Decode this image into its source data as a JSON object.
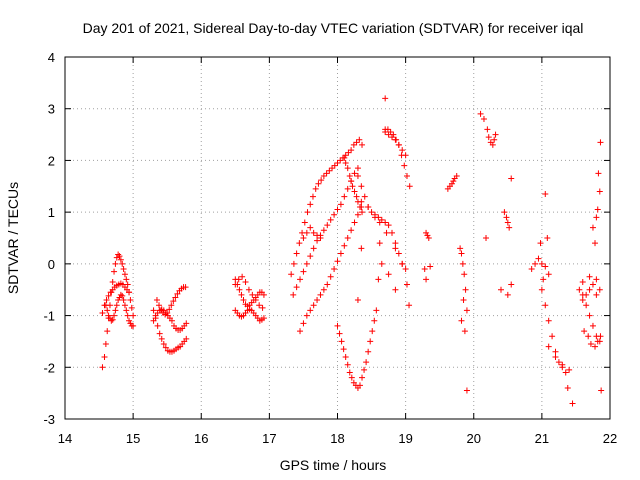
{
  "chart_data": {
    "type": "scatter",
    "title": "Day 201 of 2021, Sidereal Day-to-day VTEC variation (SDTVAR) for receiver iqal",
    "xlabel": "GPS time / hours",
    "ylabel": "SDTVAR / TECUs",
    "xlim": [
      14,
      22
    ],
    "ylim": [
      -3,
      4
    ],
    "xticks": [
      14,
      15,
      16,
      17,
      18,
      19,
      20,
      21,
      22
    ],
    "yticks": [
      -3,
      -2,
      -1,
      0,
      1,
      2,
      3,
      4
    ],
    "xtick_labels": [
      "14",
      "15",
      "16",
      "17",
      "18",
      "19",
      "20",
      "21",
      "22"
    ],
    "ytick_labels": [
      "-3",
      "-2",
      "-1",
      "0",
      "1",
      "2",
      "3",
      "4"
    ],
    "grid": true,
    "marker": "plus",
    "color": "#ff0000",
    "series": [
      {
        "name": "SDTVAR",
        "x": [
          14.55,
          14.58,
          14.6,
          14.62,
          14.64,
          14.66,
          14.68,
          14.7,
          14.72,
          14.74,
          14.76,
          14.78,
          14.8,
          14.82,
          14.84,
          14.86,
          14.88,
          14.9,
          14.92,
          14.94,
          14.96,
          14.98,
          15.0,
          14.55,
          14.58,
          14.61,
          14.64,
          14.67,
          14.7,
          14.73,
          14.76,
          14.79,
          14.82,
          14.85,
          14.88,
          14.91,
          14.94,
          14.6,
          14.62,
          14.64,
          14.66,
          14.68,
          14.7,
          14.72,
          14.74,
          14.76,
          14.78,
          14.8,
          14.82,
          14.84,
          14.86,
          14.88,
          14.9,
          14.92,
          14.94,
          14.96,
          14.98,
          15.0,
          15.3,
          15.33,
          15.36,
          15.39,
          15.42,
          15.45,
          15.48,
          15.51,
          15.54,
          15.57,
          15.6,
          15.63,
          15.66,
          15.69,
          15.72,
          15.75,
          15.78,
          15.3,
          15.33,
          15.36,
          15.39,
          15.42,
          15.45,
          15.48,
          15.51,
          15.54,
          15.57,
          15.6,
          15.63,
          15.66,
          15.69,
          15.72,
          15.75,
          15.78,
          15.35,
          15.38,
          15.41,
          15.44,
          15.47,
          15.5,
          15.53,
          15.56,
          15.59,
          15.62,
          15.65,
          15.68,
          15.71,
          15.74,
          15.77,
          16.5,
          16.53,
          16.56,
          16.59,
          16.62,
          16.65,
          16.68,
          16.71,
          16.74,
          16.77,
          16.8,
          16.83,
          16.86,
          16.89,
          16.92,
          16.5,
          16.53,
          16.56,
          16.59,
          16.62,
          16.65,
          16.68,
          16.71,
          16.74,
          16.77,
          16.8,
          16.83,
          16.86,
          16.89,
          16.92,
          16.5,
          16.55,
          16.6,
          16.65,
          16.7,
          16.75,
          16.8,
          16.85,
          16.9,
          17.32,
          17.36,
          17.4,
          17.44,
          17.48,
          17.52,
          17.56,
          17.6,
          17.64,
          17.68,
          17.72,
          17.76,
          17.8,
          17.84,
          17.88,
          17.92,
          17.96,
          18.0,
          18.04,
          18.08,
          18.12,
          18.16,
          18.2,
          18.24,
          18.28,
          18.32,
          18.36,
          17.35,
          17.4,
          17.45,
          17.5,
          17.55,
          17.6,
          17.65,
          17.7,
          17.75,
          17.8,
          17.85,
          17.9,
          17.95,
          18.0,
          18.05,
          18.1,
          18.15,
          18.2,
          18.25,
          18.3,
          17.45,
          17.5,
          17.55,
          17.6,
          17.65,
          17.7,
          17.75,
          17.8,
          17.85,
          17.9,
          17.95,
          18.0,
          18.05,
          18.1,
          18.15,
          18.2,
          18.25,
          18.3,
          18.35,
          17.5,
          17.55,
          17.6,
          17.65,
          17.7,
          17.75,
          18.0,
          18.03,
          18.06,
          18.09,
          18.12,
          18.15,
          18.18,
          18.21,
          18.24,
          18.27,
          18.3,
          18.33,
          18.36,
          18.39,
          18.42,
          18.45,
          18.48,
          18.51,
          18.54,
          18.57,
          18.3,
          18.35,
          18.4,
          18.45,
          18.5,
          18.55,
          18.6,
          18.65,
          18.7,
          18.75,
          18.8,
          18.85,
          18.9,
          18.95,
          19.0,
          18.7,
          18.74,
          18.78,
          18.82,
          18.86,
          18.9,
          18.94,
          18.98,
          19.02,
          19.06,
          18.7,
          18.75,
          18.8,
          18.85,
          18.9,
          18.95,
          19.0,
          18.35,
          18.45,
          18.55,
          18.62,
          18.72,
          18.85,
          18.95,
          19.02,
          19.05,
          18.1,
          18.12,
          18.15,
          18.18,
          18.2,
          18.22,
          18.25,
          18.28,
          18.3,
          18.33,
          18.36,
          18.7,
          18.35,
          18.3,
          18.6,
          19.3,
          19.32,
          19.34,
          19.28,
          19.36,
          19.3,
          19.62,
          19.65,
          19.68,
          19.7,
          19.72,
          19.75,
          19.8,
          19.82,
          19.84,
          19.86,
          19.88,
          19.85,
          19.9,
          19.82,
          19.87,
          19.9,
          20.1,
          20.15,
          20.2,
          20.22,
          20.25,
          20.28,
          20.3,
          20.32,
          20.18,
          20.45,
          20.48,
          20.5,
          20.52,
          20.55,
          20.55,
          20.5,
          20.4,
          20.85,
          20.9,
          20.95,
          21.0,
          21.05,
          21.1,
          21.02,
          20.98,
          21.08,
          21.0,
          21.05,
          21.1,
          21.15,
          21.2,
          21.25,
          21.3,
          21.35,
          21.1,
          21.2,
          21.3,
          21.4,
          21.45,
          21.38,
          21.6,
          21.65,
          21.7,
          21.75,
          21.8,
          21.85,
          21.62,
          21.68,
          21.72,
          21.78,
          21.82,
          21.86,
          21.55,
          21.6,
          21.65,
          21.7,
          21.75,
          21.8,
          21.85,
          21.6,
          21.7,
          21.8,
          21.75,
          21.8,
          21.82,
          21.85,
          21.78,
          21.83,
          21.86,
          21.05,
          21.87,
          18.65,
          18.75,
          18.85,
          18.62
        ],
        "y": [
          -2.0,
          -1.8,
          -1.55,
          -1.3,
          -1.05,
          -0.8,
          -0.55,
          -0.35,
          -0.15,
          0.0,
          0.12,
          0.18,
          0.15,
          0.08,
          0.0,
          -0.1,
          -0.2,
          -0.3,
          -0.4,
          -0.55,
          -0.7,
          -0.85,
          -1.0,
          -0.95,
          -0.8,
          -0.7,
          -0.62,
          -0.55,
          -0.5,
          -0.45,
          -0.42,
          -0.4,
          -0.38,
          -0.4,
          -0.45,
          -0.5,
          -0.55,
          -0.8,
          -0.9,
          -1.0,
          -1.05,
          -1.1,
          -1.08,
          -1.0,
          -0.9,
          -0.8,
          -0.7,
          -0.65,
          -0.6,
          -0.62,
          -0.7,
          -0.8,
          -0.9,
          -1.0,
          -1.1,
          -1.15,
          -1.2,
          -1.2,
          -0.9,
          -1.05,
          -1.2,
          -1.35,
          -1.45,
          -1.55,
          -1.62,
          -1.68,
          -1.7,
          -1.7,
          -1.68,
          -1.65,
          -1.62,
          -1.6,
          -1.55,
          -1.5,
          -1.45,
          -1.1,
          -1.0,
          -0.95,
          -0.9,
          -0.88,
          -0.9,
          -0.95,
          -1.0,
          -1.05,
          -1.1,
          -1.2,
          -1.25,
          -1.28,
          -1.28,
          -1.25,
          -1.2,
          -1.15,
          -0.7,
          -0.8,
          -0.9,
          -0.95,
          -0.98,
          -0.95,
          -0.88,
          -0.8,
          -0.72,
          -0.65,
          -0.58,
          -0.52,
          -0.48,
          -0.45,
          -0.45,
          -0.3,
          -0.4,
          -0.5,
          -0.6,
          -0.7,
          -0.78,
          -0.82,
          -0.8,
          -0.75,
          -0.7,
          -0.65,
          -0.6,
          -0.55,
          -0.55,
          -0.6,
          -0.9,
          -0.95,
          -1.0,
          -1.02,
          -1.0,
          -0.95,
          -0.9,
          -0.88,
          -0.9,
          -0.95,
          -1.0,
          -1.05,
          -1.1,
          -1.08,
          -1.05,
          -0.4,
          -0.3,
          -0.25,
          -0.35,
          -0.5,
          -0.6,
          -0.7,
          -0.8,
          -0.85,
          -0.2,
          0.0,
          0.2,
          0.4,
          0.6,
          0.8,
          1.0,
          1.15,
          1.3,
          1.45,
          1.55,
          1.62,
          1.7,
          1.75,
          1.8,
          1.85,
          1.9,
          1.95,
          2.0,
          2.05,
          2.1,
          2.15,
          2.2,
          2.3,
          2.35,
          2.4,
          2.3,
          -0.6,
          -0.45,
          -0.3,
          -0.15,
          0.0,
          0.15,
          0.3,
          0.45,
          0.55,
          0.65,
          0.75,
          0.85,
          0.95,
          1.05,
          1.15,
          1.3,
          1.45,
          1.6,
          1.75,
          1.85,
          -1.3,
          -1.15,
          -1.0,
          -0.9,
          -0.8,
          -0.7,
          -0.6,
          -0.5,
          -0.4,
          -0.25,
          -0.1,
          0.05,
          0.2,
          0.35,
          0.5,
          0.65,
          0.8,
          0.95,
          1.1,
          0.5,
          0.6,
          0.7,
          0.6,
          0.55,
          0.5,
          -1.2,
          -1.35,
          -1.5,
          -1.65,
          -1.8,
          -1.95,
          -2.1,
          -2.2,
          -2.3,
          -2.35,
          -2.4,
          -2.35,
          -2.2,
          -2.05,
          -1.9,
          -1.7,
          -1.5,
          -1.3,
          -1.1,
          -0.9,
          1.7,
          1.5,
          1.3,
          1.1,
          1.0,
          0.95,
          0.9,
          0.85,
          0.8,
          0.75,
          0.6,
          0.4,
          0.2,
          0.0,
          -0.1,
          2.6,
          2.6,
          2.55,
          2.5,
          2.4,
          2.3,
          2.1,
          1.9,
          1.7,
          1.5,
          2.55,
          2.5,
          2.45,
          2.4,
          2.3,
          2.2,
          2.1,
          1.2,
          1.1,
          0.9,
          0.8,
          0.6,
          0.3,
          0.0,
          -0.4,
          -0.8,
          2.05,
          1.95,
          1.85,
          1.7,
          1.6,
          1.5,
          1.4,
          1.3,
          1.2,
          1.1,
          1.0,
          3.2,
          0.3,
          -0.7,
          -0.3,
          0.6,
          0.55,
          0.5,
          -0.1,
          -0.05,
          -0.3,
          1.45,
          1.5,
          1.55,
          1.6,
          1.65,
          1.7,
          0.3,
          0.2,
          0.0,
          -0.2,
          -0.5,
          -0.7,
          -0.9,
          -1.1,
          -1.3,
          -2.45,
          2.9,
          2.8,
          2.6,
          2.45,
          2.35,
          2.3,
          2.4,
          2.5,
          0.5,
          1.0,
          0.9,
          0.8,
          0.7,
          1.65,
          -0.4,
          -0.6,
          -0.5,
          -0.1,
          0.0,
          0.1,
          0.0,
          -0.05,
          -0.2,
          -0.3,
          0.4,
          0.5,
          -0.5,
          -0.8,
          -1.1,
          -1.4,
          -1.7,
          -1.9,
          -2.0,
          -2.1,
          -1.6,
          -1.8,
          -1.95,
          -2.05,
          -2.7,
          -2.4,
          -0.6,
          -0.8,
          -1.0,
          -1.2,
          -1.4,
          -1.5,
          -1.3,
          -1.4,
          -1.55,
          -1.6,
          -1.5,
          -1.4,
          -0.5,
          -0.7,
          -0.6,
          -0.5,
          -0.4,
          -0.6,
          -0.5,
          -0.35,
          -0.25,
          -0.3,
          0.7,
          0.9,
          1.05,
          1.4,
          0.4,
          1.75,
          2.35,
          1.35,
          -2.45,
          0.0,
          -0.2,
          -0.5,
          0.4
        ]
      }
    ]
  }
}
